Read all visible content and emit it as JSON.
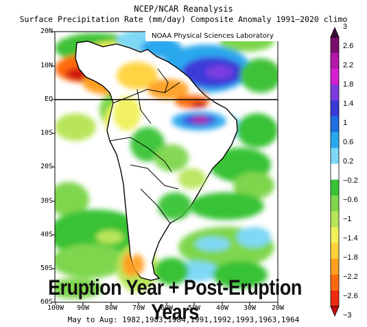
{
  "title_line1": "NCEP/NCAR Reanalysis",
  "title_line2": "Surface Precipitation Rate (mm/day) Composite Anomaly 1991–2020 climo",
  "credit": "NOAA Physical Sciences Laboratory",
  "caption": "Eruption Year + Post-Eruption Years",
  "dates_line": "May to Aug: 1982,1983,1984,1991,1992,1993,1963,1964",
  "lat_labels": [
    "20N",
    "10N",
    "EQ",
    "10S",
    "20S",
    "30S",
    "40S",
    "50S",
    "60S"
  ],
  "lon_labels": [
    "100W",
    "90W",
    "80W",
    "70W",
    "60W",
    "50W",
    "40W",
    "30W",
    "20W"
  ],
  "colorbar": {
    "labels": [
      "3",
      "2.6",
      "2.2",
      "1.8",
      "1.4",
      "1",
      "0.6",
      "0.2",
      "−0.2",
      "−0.6",
      "−1",
      "−1.4",
      "−1.8",
      "−2.2",
      "−2.6",
      "−3"
    ],
    "colors_top_to_bottom": [
      "#3d0a3a",
      "#7a0f6e",
      "#b318a8",
      "#d61fd0",
      "#7a3ce0",
      "#3a3ad8",
      "#1f6fe0",
      "#2aa8ee",
      "#7fd8f5",
      "#ffffff",
      "#38c236",
      "#7ed64d",
      "#b8e55a",
      "#f0f05a",
      "#ffd23a",
      "#ffa021",
      "#ff6a10",
      "#ee2a10",
      "#c80a0a"
    ]
  }
}
